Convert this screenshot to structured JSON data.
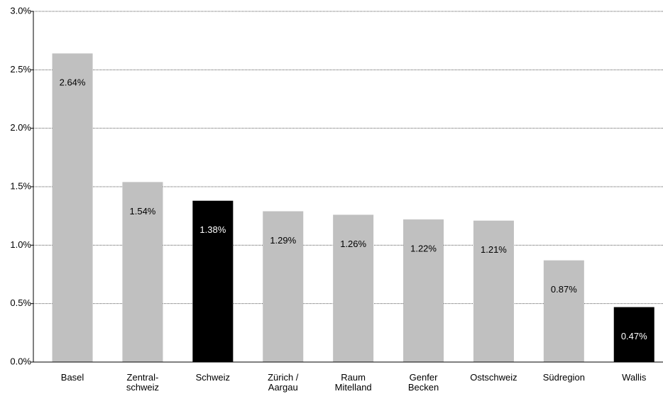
{
  "chart_data": {
    "type": "bar",
    "categories": [
      "Basel",
      "Zentral-\nschweiz",
      "Schweiz",
      "Zürich /\nAargau",
      "Raum\nMitelland",
      "Genfer\nBecken",
      "Ostschweiz",
      "Südregion",
      "Wallis"
    ],
    "values": [
      2.64,
      1.54,
      1.38,
      1.29,
      1.26,
      1.22,
      1.21,
      0.87,
      0.47
    ],
    "value_labels": [
      "2.64%",
      "1.54%",
      "1.38%",
      "1.29%",
      "1.26%",
      "1.22%",
      "1.21%",
      "0.87%",
      "0.47%"
    ],
    "colors": [
      "#c0c0c0",
      "#c0c0c0",
      "#000000",
      "#c0c0c0",
      "#c0c0c0",
      "#c0c0c0",
      "#c0c0c0",
      "#c0c0c0",
      "#000000"
    ],
    "ylim": [
      0,
      3
    ],
    "yticks": [
      {
        "value": 0,
        "label": "0.0%"
      },
      {
        "value": 0.5,
        "label": "0.5%"
      },
      {
        "value": 1,
        "label": "1.0%"
      },
      {
        "value": 1.5,
        "label": "1.5%"
      },
      {
        "value": 2,
        "label": "2.0%"
      },
      {
        "value": 2.5,
        "label": "2.5%"
      },
      {
        "value": 3,
        "label": "3.0%"
      }
    ],
    "grid": true
  }
}
